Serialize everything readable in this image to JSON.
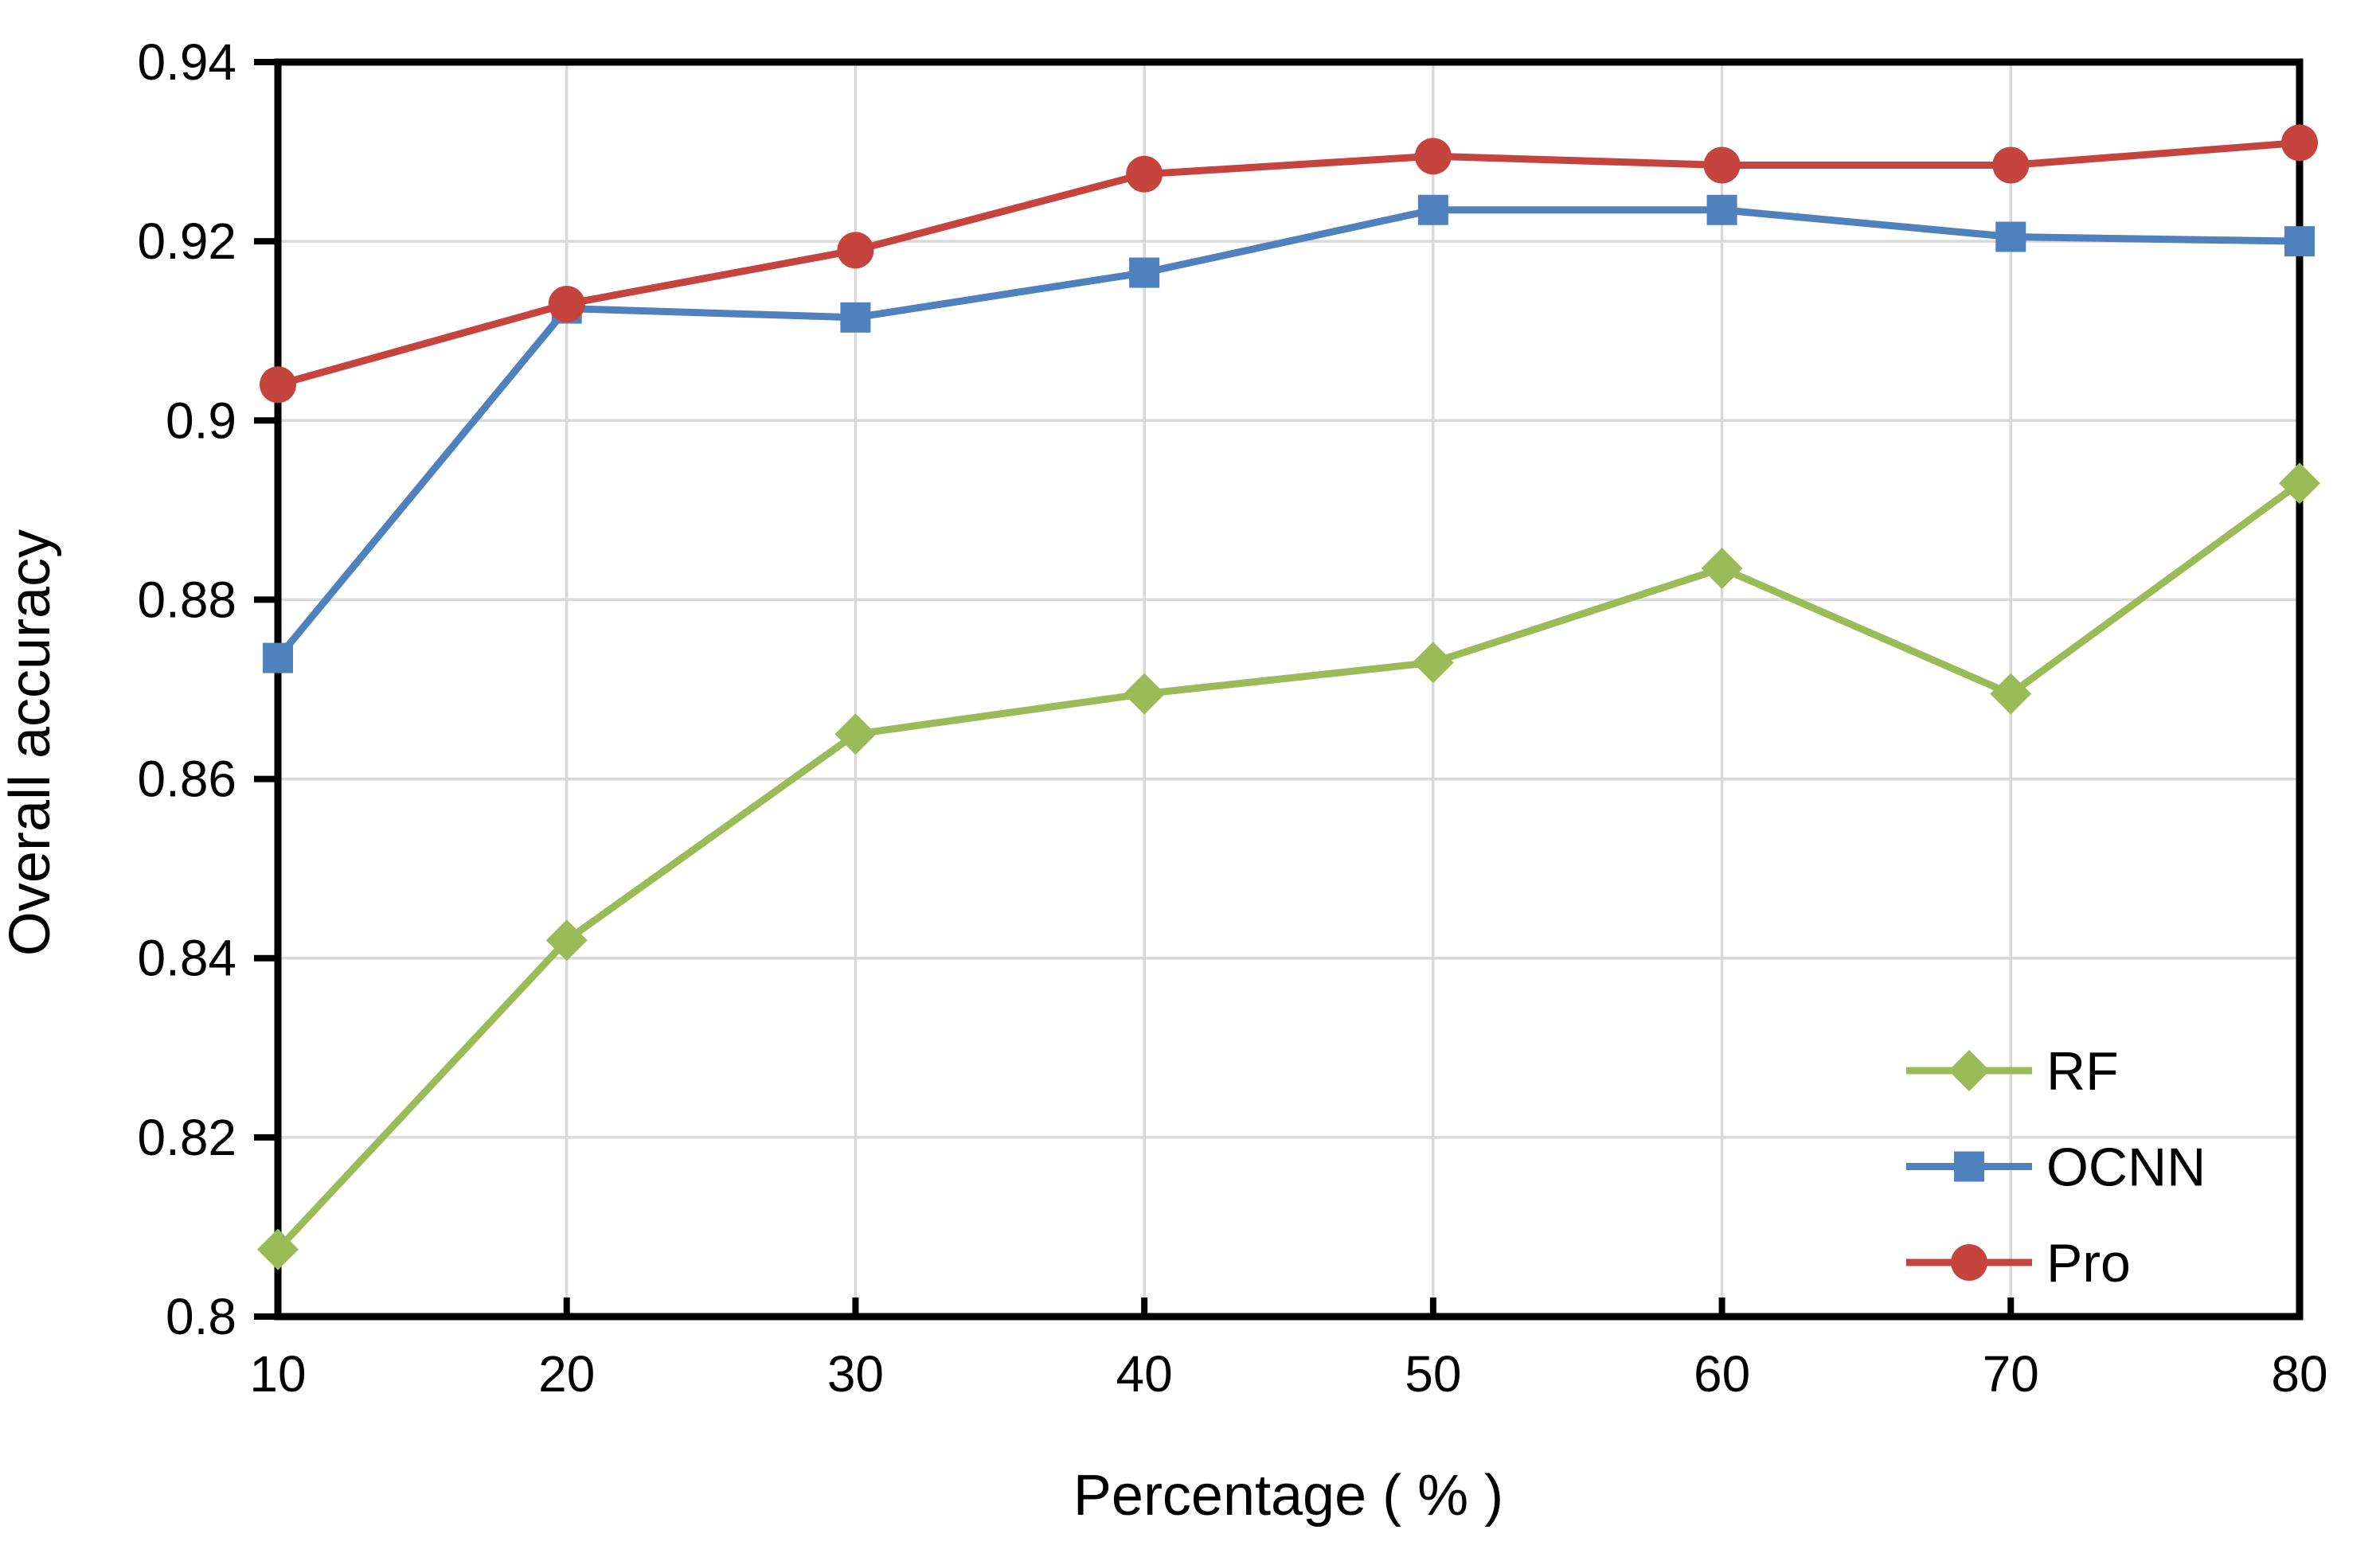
{
  "figure": {
    "background": "#ffffff",
    "axis_color": "#000000",
    "gridline_color": "#d9d9d9"
  },
  "chart_data": {
    "type": "line",
    "title": "",
    "xlabel": "Percentage ( % )",
    "ylabel": "Overall accuracy",
    "x": [
      10,
      20,
      30,
      40,
      50,
      60,
      70,
      80
    ],
    "x_tick_labels": [
      "10",
      "20",
      "30",
      "40",
      "50",
      "60",
      "70",
      "80"
    ],
    "xlim": [
      10,
      80
    ],
    "y_ticks": [
      0.8,
      0.82,
      0.84,
      0.86,
      0.88,
      0.9,
      0.92,
      0.94
    ],
    "y_tick_labels": [
      "0.8",
      "0.82",
      "0.84",
      "0.86",
      "0.88",
      "0.9",
      "0.92",
      "0.94"
    ],
    "ylim": [
      0.8,
      0.94
    ],
    "grid": true,
    "legend_position": "inside lower right",
    "series": [
      {
        "name": "RF",
        "color": "#9BBB59",
        "marker": "diamond",
        "values": [
          0.8075,
          0.842,
          0.865,
          0.8695,
          0.873,
          0.8835,
          0.8695,
          0.893
        ]
      },
      {
        "name": "OCNN",
        "color": "#4F81BD",
        "marker": "square",
        "values": [
          0.8735,
          0.9125,
          0.9115,
          0.9165,
          0.9235,
          0.9235,
          0.9205,
          0.92
        ]
      },
      {
        "name": "Pro",
        "color": "#C6443E",
        "marker": "circle",
        "values": [
          0.904,
          0.913,
          0.919,
          0.9275,
          0.9295,
          0.9285,
          0.9285,
          0.931
        ]
      }
    ]
  }
}
